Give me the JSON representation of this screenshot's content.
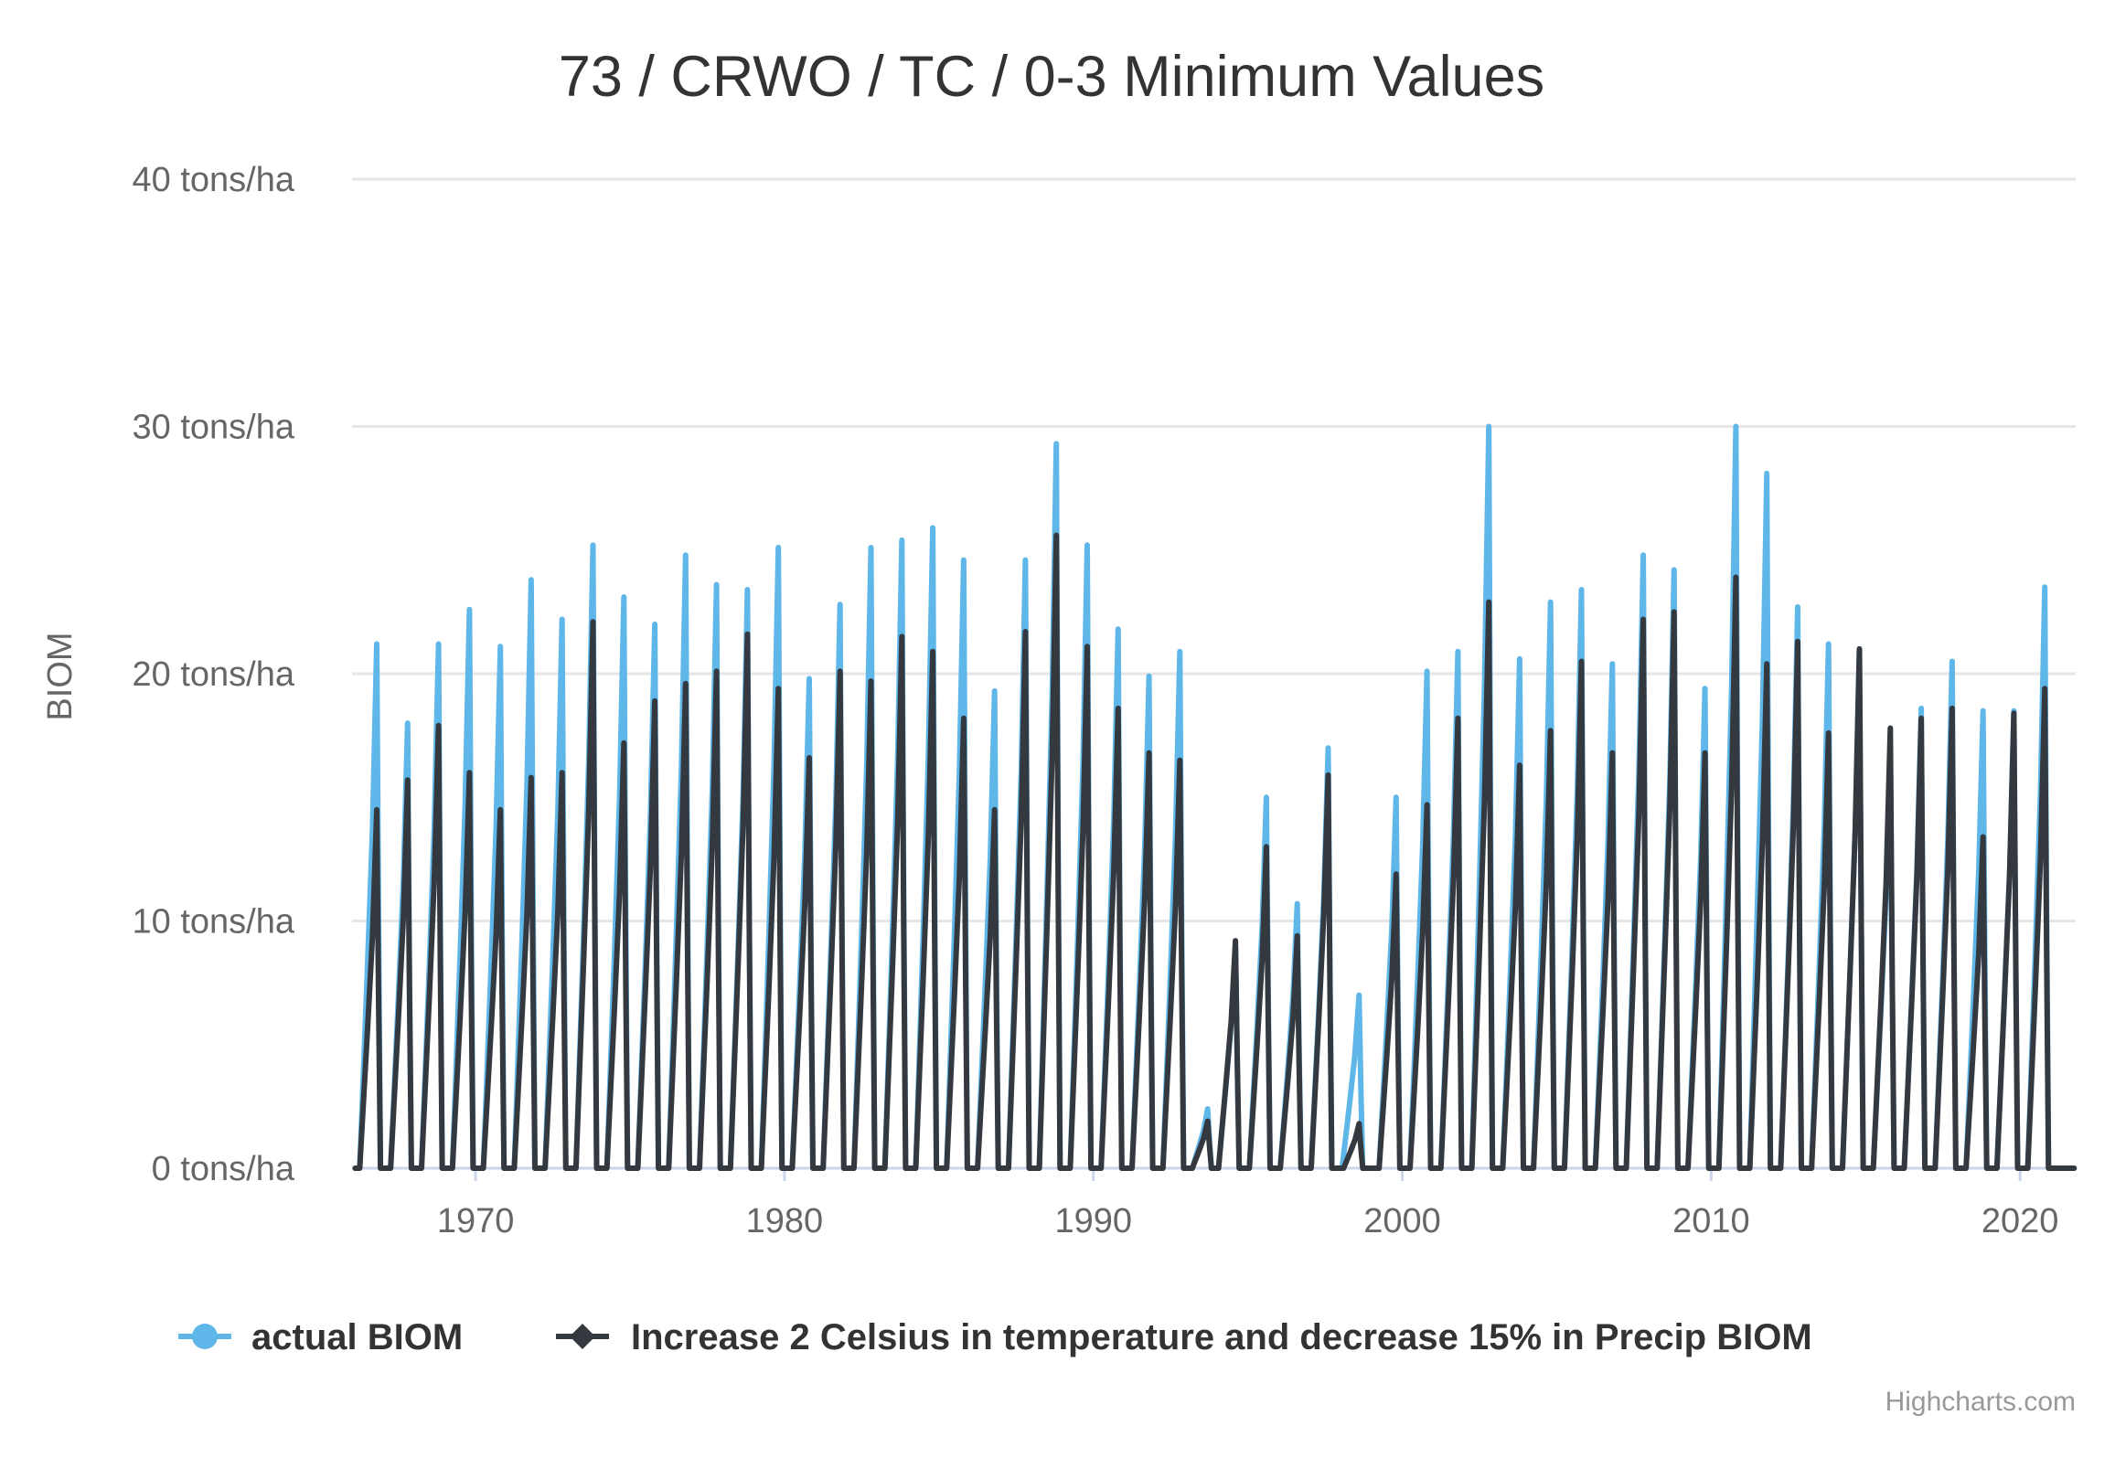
{
  "chart_data": {
    "type": "line",
    "title": "73 / CRWO / TC / 0-3 Minimum Values",
    "ylabel": "BIOM",
    "xlabel": "",
    "y_unit": "tons/ha",
    "ylim": [
      0,
      40
    ],
    "xlim": [
      1966.0,
      2021.8
    ],
    "y_ticks": [
      "0 tons/ha",
      "10 tons/ha",
      "20 tons/ha",
      "30 tons/ha",
      "40 tons/ha"
    ],
    "x_ticks": [
      "1970",
      "1980",
      "1990",
      "2000",
      "2010",
      "2020"
    ],
    "grid": true,
    "legend_position": "bottom",
    "credits": "Highcharts.com",
    "colors": {
      "actual": "#5fb6e8",
      "scenario": "#34383f",
      "grid": "#e6e6e6",
      "axis": "#ccd6eb",
      "text": "#333333",
      "label": "#666666"
    },
    "series": [
      {
        "name": "actual BIOM",
        "color": "#5fb6e8",
        "marker": "circle",
        "peaks": [
          [
            1966.8,
            21.2
          ],
          [
            1967.8,
            18.0
          ],
          [
            1968.8,
            21.2
          ],
          [
            1969.8,
            22.6
          ],
          [
            1970.8,
            21.1
          ],
          [
            1971.8,
            23.8
          ],
          [
            1972.8,
            22.2
          ],
          [
            1973.8,
            25.2
          ],
          [
            1974.8,
            23.1
          ],
          [
            1975.8,
            22.0
          ],
          [
            1976.8,
            24.8
          ],
          [
            1977.8,
            23.6
          ],
          [
            1978.8,
            23.4
          ],
          [
            1979.8,
            25.1
          ],
          [
            1980.8,
            19.8
          ],
          [
            1981.8,
            22.8
          ],
          [
            1982.8,
            25.1
          ],
          [
            1983.8,
            25.4
          ],
          [
            1984.8,
            25.9
          ],
          [
            1985.8,
            24.6
          ],
          [
            1986.8,
            19.3
          ],
          [
            1987.8,
            24.6
          ],
          [
            1988.8,
            29.3
          ],
          [
            1989.8,
            25.2
          ],
          [
            1990.8,
            21.8
          ],
          [
            1991.8,
            19.9
          ],
          [
            1992.8,
            20.9
          ],
          [
            1993.7,
            2.4
          ],
          [
            1994.6,
            9.0
          ],
          [
            1995.6,
            15.0
          ],
          [
            1996.6,
            10.7
          ],
          [
            1997.6,
            17.0
          ],
          [
            1998.6,
            7.0
          ],
          [
            1999.8,
            15.0
          ],
          [
            2000.8,
            20.1
          ],
          [
            2001.8,
            20.9
          ],
          [
            2002.8,
            30.0
          ],
          [
            2003.8,
            20.6
          ],
          [
            2004.8,
            22.9
          ],
          [
            2005.8,
            23.4
          ],
          [
            2006.8,
            20.4
          ],
          [
            2007.8,
            24.8
          ],
          [
            2008.8,
            24.2
          ],
          [
            2009.8,
            19.4
          ],
          [
            2010.8,
            30.0
          ],
          [
            2011.8,
            28.1
          ],
          [
            2012.8,
            22.7
          ],
          [
            2013.8,
            21.2
          ],
          [
            2014.8,
            21.0
          ],
          [
            2015.8,
            17.0
          ],
          [
            2016.8,
            18.6
          ],
          [
            2017.8,
            20.5
          ],
          [
            2018.8,
            18.5
          ],
          [
            2019.8,
            18.5
          ],
          [
            2020.8,
            23.5
          ]
        ]
      },
      {
        "name": "Increase 2 Celsius in temperature and decrease 15% in Precip BIOM",
        "color": "#34383f",
        "marker": "diamond",
        "peaks": [
          [
            1966.8,
            14.5
          ],
          [
            1967.8,
            15.7
          ],
          [
            1968.8,
            17.9
          ],
          [
            1969.8,
            16.0
          ],
          [
            1970.8,
            14.5
          ],
          [
            1971.8,
            15.8
          ],
          [
            1972.8,
            16.0
          ],
          [
            1973.8,
            22.1
          ],
          [
            1974.8,
            17.2
          ],
          [
            1975.8,
            18.9
          ],
          [
            1976.8,
            19.6
          ],
          [
            1977.8,
            20.1
          ],
          [
            1978.8,
            21.6
          ],
          [
            1979.8,
            19.4
          ],
          [
            1980.8,
            16.6
          ],
          [
            1981.8,
            20.1
          ],
          [
            1982.8,
            19.7
          ],
          [
            1983.8,
            21.5
          ],
          [
            1984.8,
            20.9
          ],
          [
            1985.8,
            18.2
          ],
          [
            1986.8,
            14.5
          ],
          [
            1987.8,
            21.7
          ],
          [
            1988.8,
            25.6
          ],
          [
            1989.8,
            21.1
          ],
          [
            1990.8,
            18.6
          ],
          [
            1991.8,
            16.8
          ],
          [
            1992.8,
            16.5
          ],
          [
            1993.7,
            1.9
          ],
          [
            1994.6,
            9.2
          ],
          [
            1995.6,
            13.0
          ],
          [
            1996.6,
            9.4
          ],
          [
            1997.6,
            15.9
          ],
          [
            1998.6,
            1.8
          ],
          [
            1999.8,
            11.9
          ],
          [
            2000.8,
            14.7
          ],
          [
            2001.8,
            18.2
          ],
          [
            2002.8,
            22.9
          ],
          [
            2003.8,
            16.3
          ],
          [
            2004.8,
            17.7
          ],
          [
            2005.8,
            20.5
          ],
          [
            2006.8,
            16.8
          ],
          [
            2007.8,
            22.2
          ],
          [
            2008.8,
            22.5
          ],
          [
            2009.8,
            16.8
          ],
          [
            2010.8,
            23.9
          ],
          [
            2011.8,
            20.4
          ],
          [
            2012.8,
            21.3
          ],
          [
            2013.8,
            17.6
          ],
          [
            2014.8,
            21.0
          ],
          [
            2015.8,
            17.8
          ],
          [
            2016.8,
            18.2
          ],
          [
            2017.8,
            18.6
          ],
          [
            2018.8,
            13.4
          ],
          [
            2019.8,
            18.4
          ],
          [
            2020.8,
            19.4
          ]
        ]
      }
    ]
  }
}
